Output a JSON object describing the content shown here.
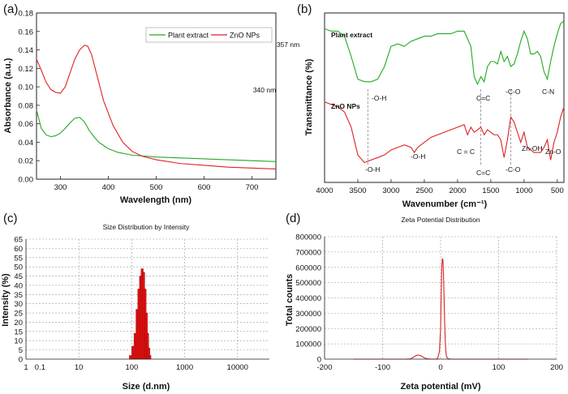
{
  "chart_data": [
    {
      "panel": "(a)",
      "type": "line",
      "title": "",
      "xlabel": "Wavelength (nm)",
      "ylabel": "Absorbance (a.u.)",
      "xlim": [
        250,
        750
      ],
      "ylim": [
        0,
        0.18
      ],
      "xticks": [
        "300",
        "400",
        "500",
        "600",
        "700"
      ],
      "yticks": [
        "0.00",
        "0.02",
        "0.04",
        "0.06",
        "0.08",
        "0.10",
        "0.12",
        "0.14",
        "0.16",
        "0.18"
      ],
      "legend": [
        "Plant extract",
        "ZnO NPs"
      ],
      "annotations": [
        "357 nm",
        "340 nm"
      ],
      "series": [
        {
          "name": "Plant extract",
          "color": "#22aa22",
          "x": [
            250,
            260,
            270,
            280,
            290,
            300,
            310,
            320,
            330,
            340,
            350,
            360,
            370,
            380,
            400,
            420,
            450,
            500,
            550,
            600,
            650,
            700,
            750
          ],
          "y": [
            0.075,
            0.055,
            0.048,
            0.046,
            0.047,
            0.05,
            0.055,
            0.061,
            0.066,
            0.067,
            0.062,
            0.053,
            0.046,
            0.04,
            0.033,
            0.029,
            0.026,
            0.024,
            0.023,
            0.022,
            0.021,
            0.02,
            0.019
          ]
        },
        {
          "name": "ZnO NPs",
          "color": "#dd2222",
          "x": [
            250,
            260,
            270,
            280,
            290,
            300,
            310,
            320,
            330,
            340,
            350,
            357,
            365,
            375,
            390,
            410,
            430,
            450,
            470,
            500,
            550,
            600,
            650,
            700,
            750
          ],
          "y": [
            0.13,
            0.118,
            0.105,
            0.097,
            0.094,
            0.093,
            0.1,
            0.115,
            0.13,
            0.14,
            0.145,
            0.144,
            0.135,
            0.115,
            0.085,
            0.058,
            0.04,
            0.03,
            0.025,
            0.021,
            0.017,
            0.015,
            0.013,
            0.012,
            0.011
          ]
        }
      ]
    },
    {
      "panel": "(b)",
      "type": "line",
      "title": "",
      "xlabel": "Wavenumber (cm⁻¹)",
      "ylabel": "Transmittance (%)",
      "xlim": [
        4000,
        400
      ],
      "xticks": [
        "4000",
        "3500",
        "3000",
        "2500",
        "2000",
        "1500",
        "1000",
        "500"
      ],
      "labels": [
        "Plant extract",
        "ZnO NPs"
      ],
      "annotations": [
        "-O-H",
        "C=C",
        "-C-O",
        "C-N",
        "-O-H",
        "-O-H",
        "C = C",
        "C=C",
        "-C-O",
        "Zn-OH",
        "Zn-O"
      ],
      "series": [
        {
          "name": "Plant extract",
          "color": "#22aa22",
          "x": [
            4000,
            3900,
            3800,
            3700,
            3600,
            3500,
            3400,
            3300,
            3200,
            3100,
            3000,
            2900,
            2800,
            2700,
            2600,
            2500,
            2400,
            2300,
            2200,
            2100,
            2000,
            1900,
            1800,
            1750,
            1700,
            1650,
            1600,
            1550,
            1500,
            1450,
            1400,
            1350,
            1300,
            1250,
            1200,
            1150,
            1100,
            1050,
            1000,
            950,
            900,
            850,
            800,
            750,
            700,
            650,
            600,
            550,
            500,
            450,
            400
          ],
          "y": [
            97,
            96,
            96,
            94,
            86,
            77,
            76,
            76,
            77,
            82,
            90,
            91,
            90,
            92,
            93,
            94,
            94,
            95,
            95,
            95,
            96,
            96,
            90,
            78,
            75,
            78,
            76,
            82,
            84,
            84,
            83,
            88,
            84,
            86,
            82,
            83,
            87,
            92,
            96,
            93,
            87,
            87,
            88,
            86,
            80,
            77,
            84,
            90,
            95,
            99,
            100
          ]
        },
        {
          "name": "ZnO NPs",
          "color": "#dd2222",
          "x": [
            4000,
            3900,
            3800,
            3700,
            3600,
            3500,
            3400,
            3300,
            3200,
            3100,
            3000,
            2900,
            2800,
            2700,
            2650,
            2600,
            2500,
            2400,
            2300,
            2200,
            2100,
            2000,
            1900,
            1850,
            1800,
            1750,
            1700,
            1650,
            1600,
            1550,
            1500,
            1450,
            1400,
            1350,
            1300,
            1250,
            1200,
            1150,
            1100,
            1050,
            1000,
            950,
            900,
            850,
            800,
            750,
            700,
            650,
            600,
            550,
            500,
            450,
            400
          ],
          "y": [
            68,
            67,
            66,
            64,
            58,
            47,
            44,
            45,
            46,
            47,
            49,
            50,
            51,
            50,
            48,
            50,
            52,
            54,
            55,
            56,
            57,
            58,
            59,
            55,
            58,
            56,
            57,
            58,
            55,
            57,
            56,
            55,
            55,
            53,
            46,
            53,
            62,
            60,
            56,
            52,
            56,
            50,
            49,
            48,
            48,
            48,
            50,
            53,
            45,
            52,
            56,
            62,
            66
          ]
        }
      ]
    },
    {
      "panel": "(c)",
      "type": "bar",
      "title": "Size Distribution by Intensity",
      "xlabel": "Size (d.nm)",
      "ylabel": "Intensity (%)",
      "xscale": "log",
      "xlim": [
        1,
        40000
      ],
      "ylim": [
        0,
        65
      ],
      "xticks": [
        "1",
        "0.1",
        "10",
        "100",
        "1000",
        "10000"
      ],
      "yticks": [
        "0",
        "5",
        "10",
        "15",
        "20",
        "25",
        "30",
        "35",
        "40",
        "45",
        "50",
        "55",
        "60",
        "65"
      ],
      "bins": [
        90,
        100,
        110,
        120,
        130,
        140,
        150,
        160,
        170,
        180,
        190,
        200,
        210
      ],
      "values": [
        2,
        7,
        14,
        27,
        38,
        45,
        49,
        47,
        38,
        25,
        14,
        6,
        2
      ]
    },
    {
      "panel": "(d)",
      "type": "line",
      "title": "Zeta Potential Distribution",
      "xlabel": "Zeta potential (mV)",
      "ylabel": "Total counts",
      "xlim": [
        -200,
        200
      ],
      "ylim": [
        0,
        800000
      ],
      "xticks": [
        "-200",
        "-100",
        "0",
        "100",
        "200"
      ],
      "yticks": [
        "0",
        "100000",
        "200000",
        "300000",
        "400000",
        "500000",
        "600000",
        "700000",
        "800000"
      ],
      "series": [
        {
          "name": "Zeta",
          "color": "#dd2222",
          "x": [
            -150,
            -60,
            -52,
            -48,
            -44,
            -40,
            -36,
            -32,
            -28,
            -22,
            -15,
            -8,
            -5,
            -2,
            0,
            1,
            2,
            3,
            4,
            5,
            6,
            7,
            8,
            9,
            10,
            12,
            15,
            20,
            40,
            80,
            150
          ],
          "y": [
            0,
            0,
            2000,
            10000,
            20000,
            26000,
            25000,
            18000,
            8000,
            2000,
            0,
            0,
            5000,
            50000,
            200000,
            420000,
            600000,
            655000,
            650000,
            560000,
            400000,
            240000,
            120000,
            50000,
            20000,
            5000,
            1000,
            0,
            0,
            0,
            0
          ]
        }
      ]
    }
  ],
  "colors": {
    "green": "#22aa22",
    "red": "#dd2222",
    "axis": "#222222",
    "grid": "#bbbbbb"
  }
}
